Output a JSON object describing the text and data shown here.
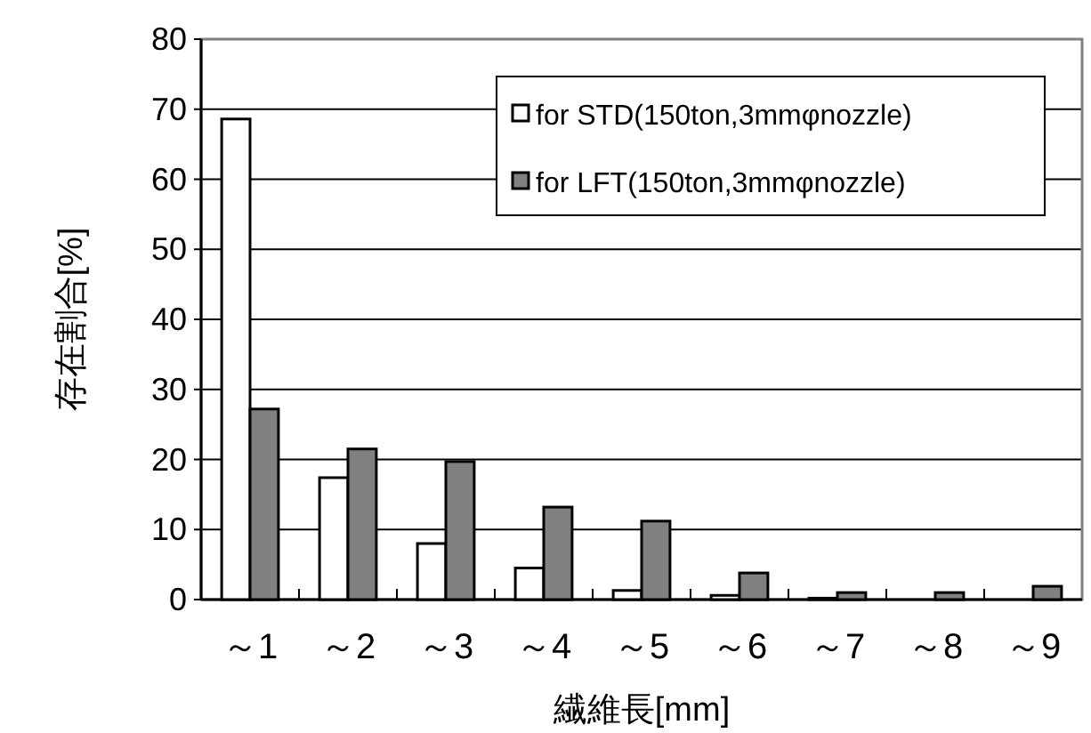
{
  "chart_data": {
    "type": "bar",
    "xlabel": "繊維長[mm]",
    "ylabel": "存在割合[%]",
    "categories": [
      "～1",
      "～2",
      "～3",
      "～4",
      "～5",
      "～6",
      "～7",
      "～8",
      "～9"
    ],
    "series": [
      {
        "name": "for STD(150ton,3mmφnozzle)",
        "color": "#ffffff",
        "values": [
          68.6,
          17.4,
          8.0,
          4.5,
          1.3,
          0.6,
          0.2,
          0,
          0
        ]
      },
      {
        "name": "for LFT(150ton,3mmφnozzle)",
        "color": "#808080",
        "values": [
          27.2,
          21.5,
          19.7,
          13.2,
          11.2,
          3.8,
          1.0,
          1.0,
          1.9
        ]
      }
    ],
    "ylim": [
      0,
      80
    ],
    "yticks": [
      0,
      10,
      20,
      30,
      40,
      50,
      60,
      70,
      80
    ],
    "grid": "y",
    "legend": "top right"
  }
}
